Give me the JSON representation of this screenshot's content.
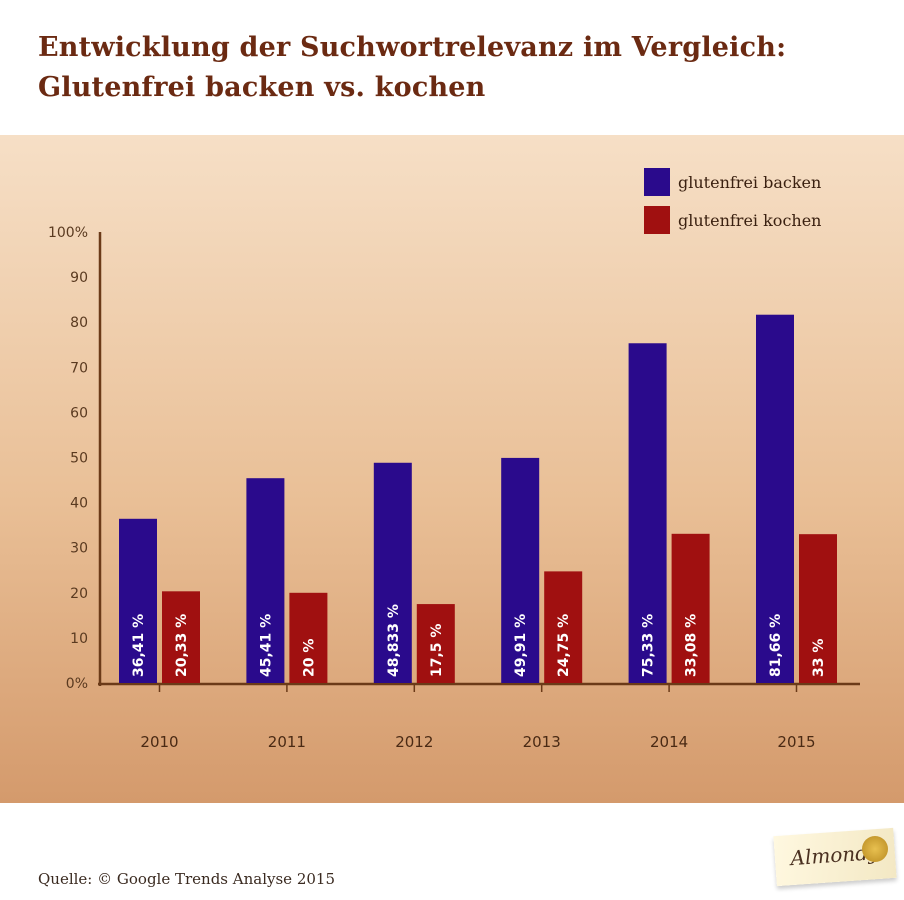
{
  "title_line1": "Entwicklung der Suchwortrelevanz im Vergleich:",
  "title_line2": "Glutenfrei backen vs. kochen",
  "source": "Quelle: © Google Trends Analyse 2015",
  "logo_text": "Almondy",
  "chart_data": {
    "type": "bar",
    "categories": [
      "2010",
      "2011",
      "2012",
      "2013",
      "2014",
      "2015"
    ],
    "series": [
      {
        "name": "glutenfrei backen",
        "values": [
          36.41,
          45.41,
          48.833,
          49.91,
          75.33,
          81.66
        ],
        "labels": [
          "36,41 %",
          "45,41 %",
          "48,833 %",
          "49,91 %",
          "75,33 %",
          "81,66 %"
        ],
        "color": "#2a0a8c"
      },
      {
        "name": "glutenfrei kochen",
        "values": [
          20.33,
          20,
          17.5,
          24.75,
          33.08,
          33
        ],
        "labels": [
          "20,33 %",
          "20 %",
          "17,5 %",
          "24,75 %",
          "33,08 %",
          "33 %"
        ],
        "color": "#a01010"
      }
    ],
    "ylim": [
      0,
      100
    ],
    "yticks": [
      "0%",
      "10",
      "20",
      "30",
      "40",
      "50",
      "60",
      "70",
      "80",
      "90",
      "100%"
    ],
    "legend": "top-right",
    "grid": false
  }
}
